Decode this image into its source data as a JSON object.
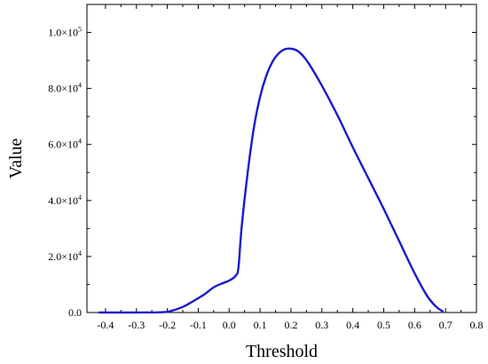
{
  "chart_data": {
    "type": "line",
    "title": "",
    "xlabel": "Threshold",
    "ylabel": "Value",
    "xlim": [
      -0.46,
      0.8
    ],
    "ylim": [
      0,
      110000
    ],
    "grid": false,
    "legend": "none",
    "x_ticks": [
      {
        "value": -0.4,
        "label": "-0.4"
      },
      {
        "value": -0.3,
        "label": "-0.3"
      },
      {
        "value": -0.2,
        "label": "-0.2"
      },
      {
        "value": -0.1,
        "label": "-0.1"
      },
      {
        "value": 0.0,
        "label": "0.0"
      },
      {
        "value": 0.1,
        "label": "0.1"
      },
      {
        "value": 0.2,
        "label": "0.2"
      },
      {
        "value": 0.3,
        "label": "0.3"
      },
      {
        "value": 0.4,
        "label": "0.4"
      },
      {
        "value": 0.5,
        "label": "0.5"
      },
      {
        "value": 0.6,
        "label": "0.6"
      },
      {
        "value": 0.7,
        "label": "0.7"
      },
      {
        "value": 0.8,
        "label": "0.8"
      }
    ],
    "y_ticks": [
      {
        "value": 0,
        "mantissa": "0.0",
        "exp": ""
      },
      {
        "value": 20000,
        "mantissa": "2.0×10",
        "exp": "4"
      },
      {
        "value": 40000,
        "mantissa": "4.0×10",
        "exp": "4"
      },
      {
        "value": 60000,
        "mantissa": "6.0×10",
        "exp": "4"
      },
      {
        "value": 80000,
        "mantissa": "8.0×10",
        "exp": "4"
      },
      {
        "value": 100000,
        "mantissa": "1.0×10",
        "exp": "5"
      }
    ],
    "series": [
      {
        "color": "#1a1acc",
        "x": [
          -0.42,
          -0.3,
          -0.22,
          -0.19,
          -0.15,
          -0.12,
          -0.08,
          -0.05,
          -0.02,
          0.0,
          0.02,
          0.03,
          0.04,
          0.06,
          0.08,
          0.1,
          0.12,
          0.14,
          0.16,
          0.18,
          0.2,
          0.22,
          0.24,
          0.26,
          0.3,
          0.35,
          0.4,
          0.45,
          0.5,
          0.55,
          0.6,
          0.64,
          0.67,
          0.69
        ],
        "y": [
          0,
          0,
          100,
          500,
          2000,
          3800,
          6500,
          9000,
          10500,
          11400,
          13000,
          16000,
          30000,
          50000,
          66000,
          77000,
          84500,
          89500,
          92500,
          94000,
          94200,
          93500,
          91500,
          88500,
          81000,
          70500,
          59000,
          48000,
          37000,
          25500,
          14000,
          6000,
          2000,
          500
        ]
      }
    ]
  }
}
